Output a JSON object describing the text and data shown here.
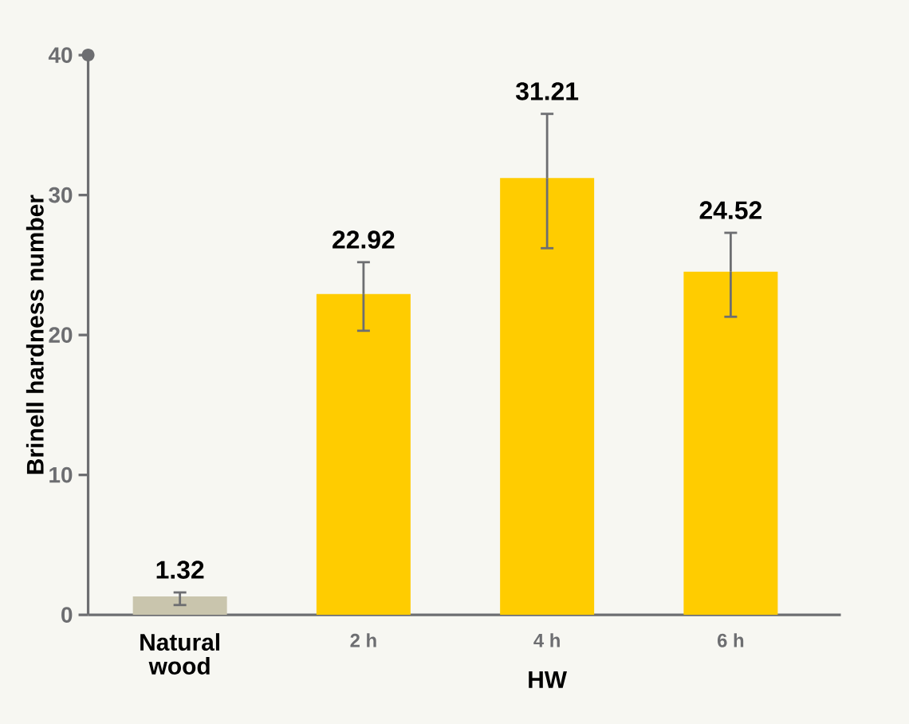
{
  "chart_data": {
    "type": "bar",
    "ylabel": "Brinell hardness number",
    "categories": [
      "Natural wood",
      "2 h",
      "4 h",
      "6 h"
    ],
    "values": [
      1.32,
      22.92,
      31.21,
      24.52
    ],
    "colors": [
      "#c9c5ad",
      "#ffcc00",
      "#ffcc00",
      "#ffcc00"
    ],
    "errors": [
      [
        0.7,
        1.6
      ],
      [
        20.3,
        25.2
      ],
      [
        26.2,
        35.8
      ],
      [
        21.3,
        27.3
      ]
    ],
    "data_labels": true,
    "ylim": [
      0,
      40
    ],
    "yticks": [
      0,
      10,
      20,
      30,
      40
    ],
    "annotations": [
      "HW"
    ]
  }
}
